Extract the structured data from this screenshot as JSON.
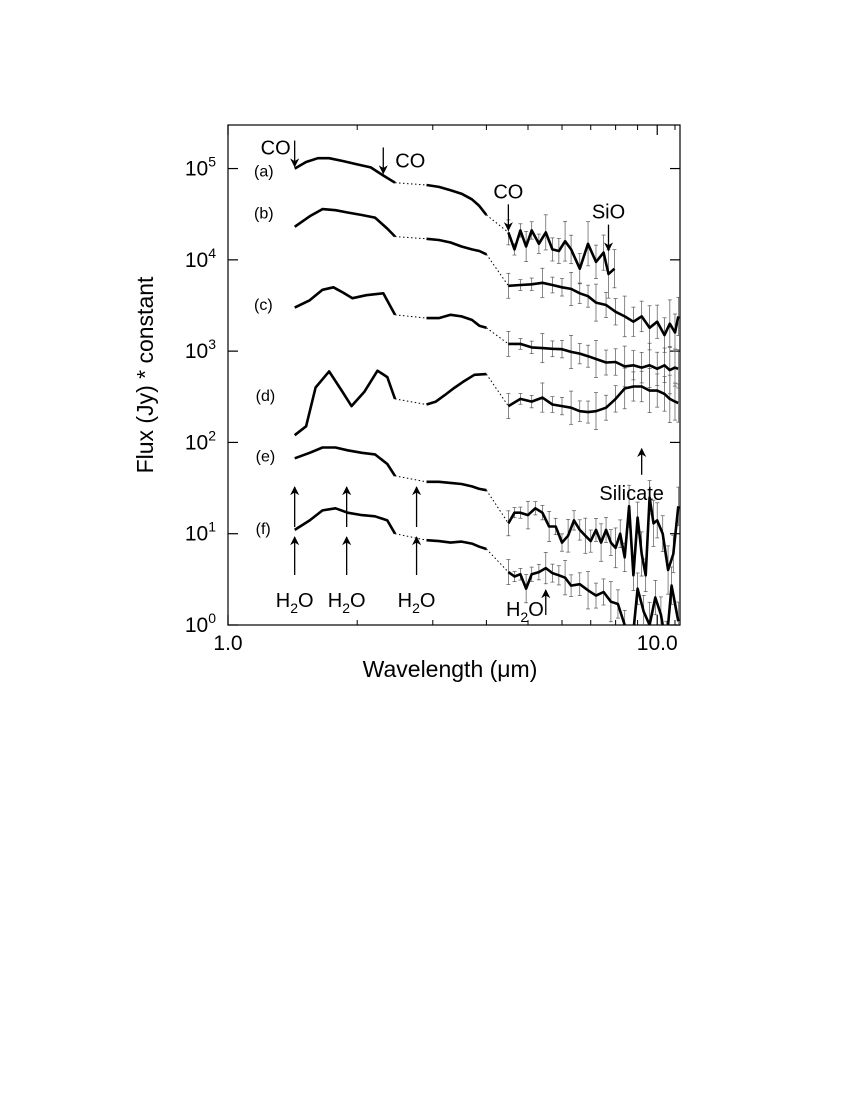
{
  "chart_data": {
    "type": "line",
    "x_scale": "log",
    "y_scale": "log",
    "xlim": [
      1.0,
      11.3
    ],
    "ylim": [
      1,
      300000
    ],
    "xlabel": "Wavelength (μm)",
    "ylabel": "Flux (Jy) *  constant",
    "grid": false,
    "x_ticks": [
      {
        "value": 1.0,
        "label": "1.0"
      },
      {
        "value": 10.0,
        "label": "10.0"
      }
    ],
    "y_ticks": [
      {
        "value": 1,
        "base": "10",
        "exp": "0"
      },
      {
        "value": 10,
        "base": "10",
        "exp": "1"
      },
      {
        "value": 100,
        "base": "10",
        "exp": "2"
      },
      {
        "value": 1000,
        "base": "10",
        "exp": "3"
      },
      {
        "value": 10000,
        "base": "10",
        "exp": "4"
      },
      {
        "value": 100000,
        "base": "10",
        "exp": "5"
      }
    ],
    "series": [
      {
        "name": "(a)",
        "label_x": 1.15,
        "label_y": 95000,
        "nir1": [
          [
            1.43,
            100000
          ],
          [
            1.52,
            118000
          ],
          [
            1.62,
            130000
          ],
          [
            1.72,
            130000
          ],
          [
            1.85,
            121000
          ],
          [
            2.0,
            111000
          ],
          [
            2.15,
            103000
          ],
          [
            2.3,
            84000
          ],
          [
            2.45,
            70000
          ]
        ],
        "nir2": [
          [
            2.9,
            66000
          ],
          [
            3.1,
            63000
          ],
          [
            3.3,
            58000
          ],
          [
            3.5,
            53000
          ],
          [
            3.7,
            46000
          ],
          [
            3.85,
            39000
          ],
          [
            4.0,
            31000
          ]
        ],
        "mir": [
          [
            4.5,
            20000
          ],
          [
            4.65,
            13000
          ],
          [
            4.8,
            21000
          ],
          [
            4.95,
            14000
          ],
          [
            5.1,
            21000
          ],
          [
            5.3,
            15000
          ],
          [
            5.5,
            20000
          ],
          [
            5.7,
            13000
          ],
          [
            5.9,
            12500
          ],
          [
            6.1,
            16000
          ],
          [
            6.3,
            13000
          ],
          [
            6.6,
            8000
          ],
          [
            6.9,
            15000
          ],
          [
            7.2,
            9500
          ],
          [
            7.5,
            12000
          ],
          [
            7.7,
            7000
          ],
          [
            7.95,
            8000
          ]
        ]
      },
      {
        "name": "(b)",
        "label_x": 1.15,
        "label_y": 33000,
        "nir1": [
          [
            1.43,
            23000
          ],
          [
            1.55,
            30000
          ],
          [
            1.66,
            36000
          ],
          [
            1.78,
            35000
          ],
          [
            1.9,
            33000
          ],
          [
            2.05,
            31000
          ],
          [
            2.2,
            29000
          ],
          [
            2.35,
            22000
          ],
          [
            2.45,
            18000
          ]
        ],
        "nir2": [
          [
            2.9,
            17000
          ],
          [
            3.1,
            16500
          ],
          [
            3.3,
            15500
          ],
          [
            3.5,
            14000
          ],
          [
            3.7,
            13000
          ],
          [
            3.85,
            12500
          ],
          [
            4.0,
            11500
          ]
        ],
        "mir": [
          [
            4.5,
            5200
          ],
          [
            4.8,
            5300
          ],
          [
            5.1,
            5400
          ],
          [
            5.4,
            5600
          ],
          [
            5.7,
            5300
          ],
          [
            6.0,
            5000
          ],
          [
            6.3,
            4800
          ],
          [
            6.6,
            4300
          ],
          [
            6.9,
            4000
          ],
          [
            7.2,
            3400
          ],
          [
            7.6,
            3200
          ],
          [
            8.0,
            2700
          ],
          [
            8.4,
            2400
          ],
          [
            8.8,
            2100
          ],
          [
            9.2,
            2400
          ],
          [
            9.6,
            1800
          ],
          [
            10.0,
            2100
          ],
          [
            10.4,
            1500
          ],
          [
            10.7,
            2000
          ],
          [
            11.0,
            1600
          ],
          [
            11.2,
            2400
          ]
        ]
      },
      {
        "name": "(c)",
        "label_x": 1.15,
        "label_y": 3300,
        "nir1": [
          [
            1.43,
            3000
          ],
          [
            1.55,
            3600
          ],
          [
            1.66,
            4700
          ],
          [
            1.76,
            5000
          ],
          [
            1.85,
            4400
          ],
          [
            1.95,
            3800
          ],
          [
            2.1,
            4100
          ],
          [
            2.3,
            4300
          ],
          [
            2.45,
            2500
          ]
        ],
        "nir2": [
          [
            2.9,
            2300
          ],
          [
            3.1,
            2300
          ],
          [
            3.3,
            2500
          ],
          [
            3.5,
            2400
          ],
          [
            3.7,
            2200
          ],
          [
            3.85,
            1900
          ],
          [
            4.0,
            1800
          ]
        ],
        "mir": [
          [
            4.5,
            1200
          ],
          [
            4.8,
            1200
          ],
          [
            5.1,
            1100
          ],
          [
            5.4,
            1080
          ],
          [
            5.7,
            1060
          ],
          [
            6.0,
            1050
          ],
          [
            6.3,
            980
          ],
          [
            6.6,
            940
          ],
          [
            6.9,
            880
          ],
          [
            7.2,
            820
          ],
          [
            7.6,
            750
          ],
          [
            8.0,
            760
          ],
          [
            8.4,
            680
          ],
          [
            8.8,
            700
          ],
          [
            9.2,
            660
          ],
          [
            9.6,
            700
          ],
          [
            10.0,
            640
          ],
          [
            10.4,
            700
          ],
          [
            10.7,
            620
          ],
          [
            11.0,
            660
          ],
          [
            11.2,
            640
          ]
        ]
      },
      {
        "name": "(d)",
        "label_x": 1.16,
        "label_y": 330,
        "nir1": [
          [
            1.43,
            120
          ],
          [
            1.52,
            150
          ],
          [
            1.6,
            400
          ],
          [
            1.72,
            600
          ],
          [
            1.84,
            370
          ],
          [
            1.94,
            250
          ],
          [
            2.08,
            360
          ],
          [
            2.23,
            610
          ],
          [
            2.35,
            520
          ],
          [
            2.45,
            300
          ]
        ],
        "nir2": [
          [
            2.9,
            260
          ],
          [
            3.05,
            280
          ],
          [
            3.2,
            330
          ],
          [
            3.35,
            390
          ],
          [
            3.55,
            470
          ],
          [
            3.75,
            550
          ],
          [
            4.0,
            560
          ]
        ],
        "mir": [
          [
            4.5,
            250
          ],
          [
            4.8,
            300
          ],
          [
            5.1,
            280
          ],
          [
            5.4,
            310
          ],
          [
            5.7,
            260
          ],
          [
            6.0,
            250
          ],
          [
            6.3,
            240
          ],
          [
            6.6,
            220
          ],
          [
            6.9,
            215
          ],
          [
            7.2,
            220
          ],
          [
            7.6,
            240
          ],
          [
            8.0,
            300
          ],
          [
            8.4,
            390
          ],
          [
            8.8,
            410
          ],
          [
            9.2,
            410
          ],
          [
            9.6,
            370
          ],
          [
            10.0,
            370
          ],
          [
            10.4,
            340
          ],
          [
            10.7,
            300
          ],
          [
            11.0,
            280
          ],
          [
            11.2,
            270
          ]
        ]
      },
      {
        "name": "(e)",
        "label_x": 1.16,
        "label_y": 72,
        "nir1": [
          [
            1.43,
            67
          ],
          [
            1.55,
            77
          ],
          [
            1.66,
            88
          ],
          [
            1.78,
            88
          ],
          [
            1.9,
            82
          ],
          [
            2.05,
            77
          ],
          [
            2.2,
            74
          ],
          [
            2.35,
            58
          ],
          [
            2.45,
            43
          ]
        ],
        "nir2": [
          [
            2.9,
            37
          ],
          [
            3.1,
            37
          ],
          [
            3.3,
            36
          ],
          [
            3.5,
            35
          ],
          [
            3.7,
            33
          ],
          [
            3.85,
            31
          ],
          [
            4.0,
            30
          ]
        ],
        "mir": [
          [
            4.5,
            13
          ],
          [
            4.65,
            17
          ],
          [
            4.8,
            17
          ],
          [
            5.0,
            16
          ],
          [
            5.2,
            19
          ],
          [
            5.4,
            17
          ],
          [
            5.6,
            12
          ],
          [
            5.8,
            12
          ],
          [
            6.0,
            8.0
          ],
          [
            6.2,
            9.5
          ],
          [
            6.4,
            14
          ],
          [
            6.6,
            11
          ],
          [
            6.8,
            9.5
          ],
          [
            7.0,
            8.3
          ],
          [
            7.2,
            11
          ],
          [
            7.4,
            8.0
          ],
          [
            7.6,
            11
          ],
          [
            7.8,
            8.0
          ],
          [
            8.0,
            7.0
          ],
          [
            8.2,
            10
          ],
          [
            8.4,
            5.5
          ],
          [
            8.6,
            20
          ],
          [
            8.8,
            3.5
          ],
          [
            9.0,
            15
          ],
          [
            9.2,
            6.0
          ],
          [
            9.4,
            3.5
          ],
          [
            9.6,
            25
          ],
          [
            9.8,
            13
          ],
          [
            10.0,
            14
          ],
          [
            10.3,
            10
          ],
          [
            10.6,
            4.0
          ],
          [
            10.9,
            6.0
          ],
          [
            11.2,
            20
          ]
        ]
      },
      {
        "name": "(f)",
        "label_x": 1.16,
        "label_y": 11.5,
        "nir1": [
          [
            1.43,
            11
          ],
          [
            1.55,
            14
          ],
          [
            1.66,
            18
          ],
          [
            1.78,
            19
          ],
          [
            1.9,
            17
          ],
          [
            2.05,
            16
          ],
          [
            2.2,
            15.5
          ],
          [
            2.35,
            14
          ],
          [
            2.45,
            10
          ]
        ],
        "nir2": [
          [
            2.9,
            8.5
          ],
          [
            3.1,
            8.3
          ],
          [
            3.3,
            8.0
          ],
          [
            3.5,
            8.2
          ],
          [
            3.7,
            7.8
          ],
          [
            3.85,
            7.2
          ],
          [
            4.0,
            6.8
          ]
        ],
        "mir": [
          [
            4.5,
            3.8
          ],
          [
            4.65,
            3.4
          ],
          [
            4.8,
            3.6
          ],
          [
            4.95,
            2.5
          ],
          [
            5.1,
            3.6
          ],
          [
            5.3,
            3.8
          ],
          [
            5.5,
            4.2
          ],
          [
            5.7,
            3.7
          ],
          [
            5.9,
            3.5
          ],
          [
            6.1,
            3.3
          ],
          [
            6.3,
            2.7
          ],
          [
            6.6,
            2.8
          ],
          [
            6.9,
            2.4
          ],
          [
            7.2,
            2.1
          ],
          [
            7.5,
            2.3
          ],
          [
            7.8,
            1.8
          ],
          [
            8.1,
            1.7
          ],
          [
            8.4,
            1.0
          ],
          [
            8.7,
            0.5
          ],
          [
            9.0,
            2.5
          ],
          [
            9.3,
            1.4
          ],
          [
            9.6,
            1.0
          ],
          [
            9.9,
            2.0
          ],
          [
            10.2,
            1.3
          ],
          [
            10.5,
            0.6
          ],
          [
            10.8,
            2.7
          ],
          [
            11.2,
            1.1
          ]
        ]
      }
    ],
    "annotations": [
      {
        "id": "co-1",
        "text": "CO",
        "arrow": "down",
        "x": 1.43,
        "y": 100000
      },
      {
        "id": "co-2",
        "text": "CO",
        "arrow": "down",
        "x": 2.3,
        "y": 84000
      },
      {
        "id": "co-3",
        "text": "CO",
        "arrow": "down",
        "x": 4.5,
        "y": 20000
      },
      {
        "id": "sio",
        "text": "SiO",
        "arrow": "down",
        "x": 7.7,
        "y": 12000
      },
      {
        "id": "silicate",
        "text": "Silicate",
        "arrow": "up",
        "x": 9.2,
        "y": 160
      },
      {
        "id": "h2o-1",
        "text": "H",
        "sub": "2",
        "tail": "O",
        "arrow": "up",
        "x": 1.43
      },
      {
        "id": "h2o-2",
        "text": "H",
        "sub": "2",
        "tail": "O",
        "arrow": "up",
        "x": 1.89
      },
      {
        "id": "h2o-3",
        "text": "H",
        "sub": "2",
        "tail": "O",
        "arrow": "up",
        "x": 2.75
      },
      {
        "id": "h2o-4",
        "text": "H",
        "sub": "2",
        "tail": "O",
        "arrow": "up",
        "x": 5.5
      }
    ]
  }
}
